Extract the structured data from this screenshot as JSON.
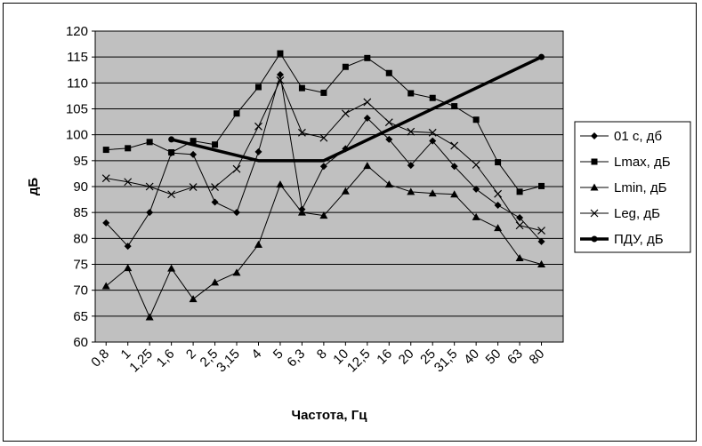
{
  "chart_data": {
    "type": "line",
    "xlabel": "Частота, Гц",
    "ylabel": "дБ",
    "ylim": [
      60,
      120
    ],
    "yticks": [
      60,
      65,
      70,
      75,
      80,
      85,
      90,
      95,
      100,
      105,
      110,
      115,
      120
    ],
    "categories": [
      "0,8",
      "1",
      "1,25",
      "1,6",
      "2",
      "2,5",
      "3,15",
      "4",
      "5",
      "6,3",
      "8",
      "10",
      "12,5",
      "16",
      "20",
      "25",
      "31,5",
      "40",
      "50",
      "63",
      "80"
    ],
    "grid": "horizontal",
    "legend_position": "right",
    "plot_background": "#c0c0c0",
    "series": [
      {
        "name": "01 с, дб",
        "marker": "diamond",
        "stroke_width": 1,
        "values": [
          83,
          78.5,
          85,
          96.5,
          96.2,
          87,
          85,
          96.7,
          111.6,
          85.6,
          93.9,
          97.3,
          103.2,
          99.1,
          94.1,
          98.8,
          93.9,
          89.5,
          86.4,
          84,
          79.4
        ]
      },
      {
        "name": "Lmax, дБ",
        "marker": "square",
        "stroke_width": 1,
        "values": [
          97.1,
          97.4,
          98.6,
          96.6,
          98.8,
          98.1,
          104.1,
          109.2,
          115.7,
          109,
          108.1,
          113.1,
          114.8,
          111.9,
          108,
          107.1,
          105.5,
          102.9,
          94.7,
          89,
          90.1
        ]
      },
      {
        "name": "Lmin, дБ",
        "marker": "triangle",
        "stroke_width": 1,
        "values": [
          70.8,
          74.3,
          64.8,
          74.2,
          68.3,
          71.5,
          73.4,
          78.8,
          90.4,
          85,
          84.4,
          89.1,
          94,
          90.4,
          89,
          88.7,
          88.5,
          84.1,
          82,
          76.2,
          75
        ]
      },
      {
        "name": "Leg, дБ",
        "marker": "x",
        "stroke_width": 1,
        "values": [
          91.6,
          90.9,
          90,
          88.5,
          89.9,
          89.9,
          93.4,
          101.6,
          110.5,
          100.4,
          99.4,
          104.1,
          106.3,
          102.4,
          100.6,
          100.4,
          97.9,
          94.2,
          88.6,
          82.5,
          81.5
        ]
      },
      {
        "name": "ПДУ, дБ",
        "marker": "circle",
        "stroke_width": 3.5,
        "values": [
          null,
          null,
          null,
          99.1,
          null,
          null,
          null,
          95,
          null,
          95,
          95,
          null,
          null,
          null,
          null,
          null,
          null,
          null,
          null,
          null,
          115
        ]
      }
    ]
  }
}
